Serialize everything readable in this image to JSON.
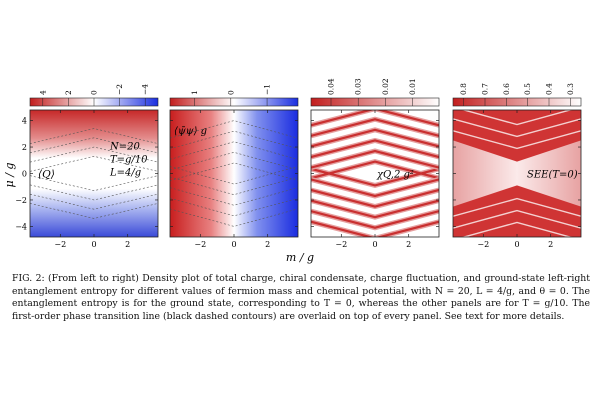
{
  "colors": {
    "red": "#d63a3a",
    "white": "#ffffff",
    "blue": "#2232e6",
    "contour": "#555555"
  },
  "axes": {
    "xlabel": "m / g",
    "ylabel": "μ / g",
    "xticks": [
      "−2",
      "0",
      "2"
    ],
    "yticks": [
      "4",
      "2",
      "0",
      "−2",
      "−4"
    ]
  },
  "panels": [
    {
      "id": "charge",
      "cbar_ticks": [
        "4",
        "2",
        "0",
        "−2",
        "−4"
      ],
      "cbar": "redblue",
      "label": "⟨Q⟩",
      "params": [
        "N=20",
        "T=g/10",
        "L=4/g"
      ]
    },
    {
      "id": "condensate",
      "cbar_ticks": [
        "1",
        "0",
        "−1"
      ],
      "cbar": "redblue",
      "label": "⟨ψ̄ψ⟩ g"
    },
    {
      "id": "fluctuation",
      "cbar_ticks": [
        "0.04",
        "0.03",
        "0.02",
        "0.01"
      ],
      "cbar": "redwhite",
      "label": "χQ,2 g²"
    },
    {
      "id": "entropy",
      "cbar_ticks": [
        "0.8",
        "0.7",
        "0.6",
        "0.5",
        "0.4",
        "0.3"
      ],
      "cbar": "redwhite",
      "label": "SEE(T=0)"
    }
  ],
  "caption": "FIG. 2: (From left to right) Density plot of total charge, chiral condensate, charge fluctuation, and ground-state left-right entanglement entropy for different values of fermion mass and chemical potential, with N = 20, L = 4/g, and θ = 0. The entanglement entropy is for the ground state, corresponding to T = 0, whereas the other panels are for T = g/10. The first-order phase transition line (black dashed contours) are overlaid on top of every panel. See text for more details."
}
